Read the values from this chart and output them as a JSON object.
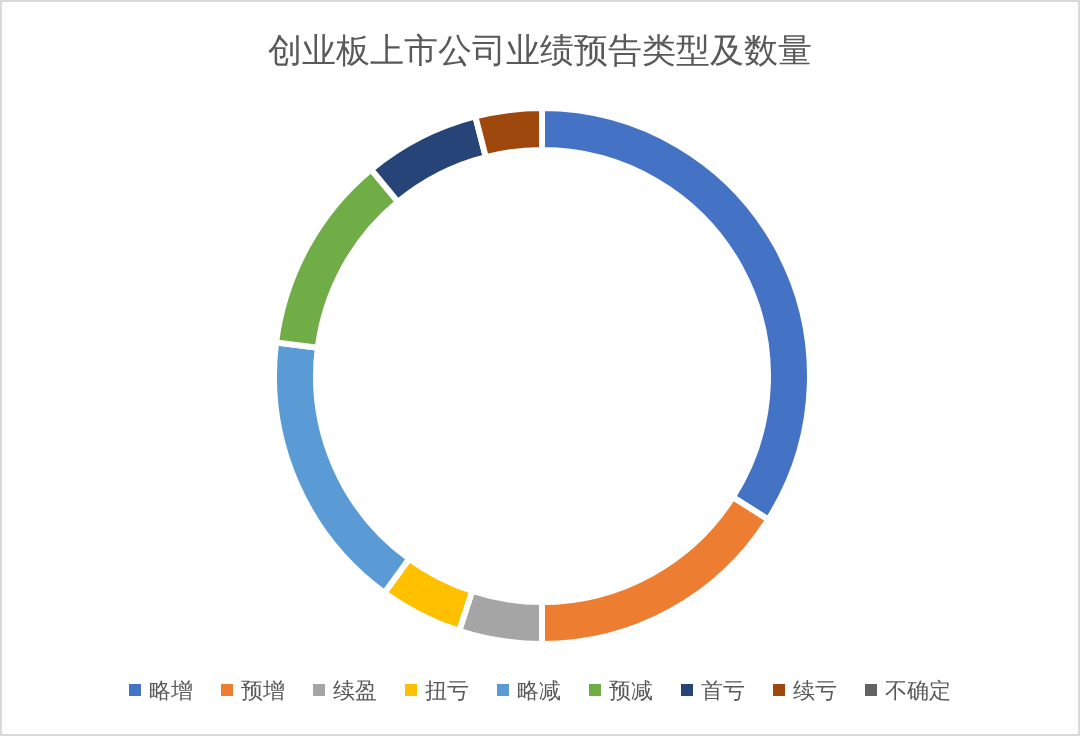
{
  "chart_data": {
    "type": "donut",
    "title": "创业板上市公司业绩预告类型及数量",
    "categories": [
      "略增",
      "预增",
      "续盈",
      "扭亏",
      "略减",
      "预减",
      "首亏",
      "续亏",
      "不确定"
    ],
    "values": [
      34,
      16,
      5,
      5,
      17,
      12,
      7,
      4,
      0
    ],
    "colors": [
      "#4472c4",
      "#ed7d31",
      "#a5a5a5",
      "#ffc000",
      "#5b9bd5",
      "#70ad47",
      "#264478",
      "#9e480e",
      "#636363"
    ],
    "legend": "bottom"
  }
}
